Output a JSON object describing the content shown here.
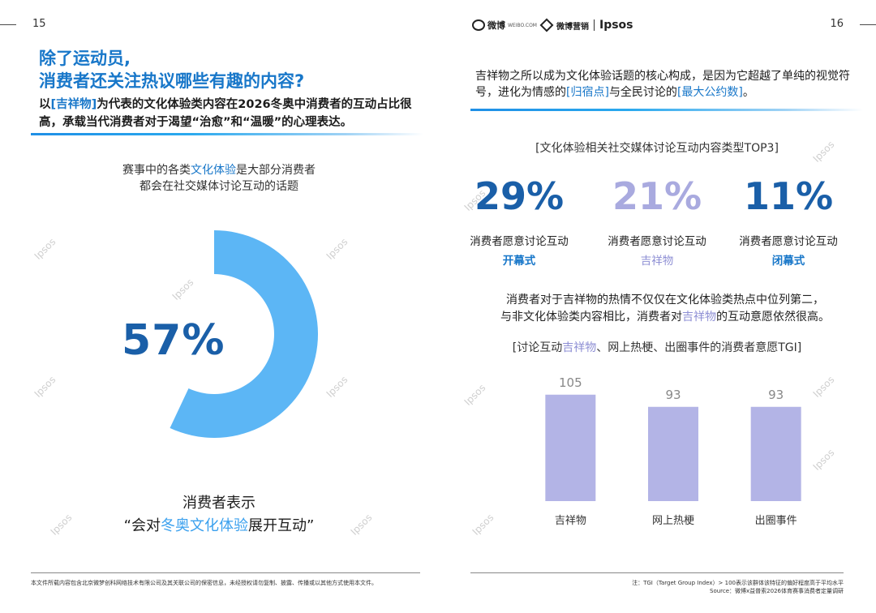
{
  "left_page": {
    "page_number": "15",
    "heading_line1": "除了运动员,",
    "heading_line2": "消费者还关注热议哪些有趣的内容?",
    "intro": {
      "before": "以",
      "highlight": "[吉祥物]",
      "after": "为代表的文化体验类内容在2026冬奥中消费者的互动占比很高，承载当代消费者对于渴望“治愈”和“温暖”的心理表达。"
    },
    "desc": {
      "before": "赛事中的各类",
      "highlight": "文化体验",
      "after": "是大部分消费者",
      "line2": "都会在社交媒体讨论互动的话题"
    },
    "donut": {
      "value": 57,
      "label": "57%",
      "color": "#5cb6f5"
    },
    "note_line1": "消费者表示",
    "note_line2": {
      "before": "“会对",
      "highlight": "冬奥文化体验",
      "after": "展开互动”"
    },
    "disclaimer": "本文件所载内容包含北京微梦创科网络技术有限公司及其关联公司的保密信息，未经授权请勿复制、披露、传播或以其他方式使用本文件。"
  },
  "right_page": {
    "page_number": "16",
    "logos": {
      "weibo": "微博",
      "weibo_sub": "WEIBO.COM",
      "insight": "微博营销",
      "ipsos": "Ipsos"
    },
    "intro": {
      "part1": "吉祥物之所以成为文化体验话题的核心构成，是因为它超越了单纯的视觉符号，进化为情感的",
      "hl1": "[归宿点]",
      "part2": "与全民讨论的",
      "hl2": "[最大公约数]",
      "part3": "。"
    },
    "top3_title": "[文化体验相关社交媒体讨论互动内容类型TOP3]",
    "stats": [
      {
        "value": "29%",
        "line1": "消费者愿意讨论互动",
        "line2": "开幕式",
        "color": "#1a5fa8",
        "sub_color": "#1877c9"
      },
      {
        "value": "21%",
        "line1": "消费者愿意讨论互动",
        "line2": "吉祥物",
        "color": "#a9aadf",
        "sub_color": "#8e8fd4"
      },
      {
        "value": "11%",
        "line1": "消费者愿意讨论互动",
        "line2": "闭幕式",
        "color": "#1a5fa8",
        "sub_color": "#1877c9"
      }
    ],
    "para2": {
      "line1": "消费者对于吉祥物的热情不仅仅在文化体验类热点中位列第二，",
      "line2_before": "与非文化体验类内容相比，消费者对",
      "line2_hl": "吉祥物",
      "line2_after": "的互动意愿依然很高。"
    },
    "bar_title": {
      "before": "[讨论互动",
      "hl": "吉祥物",
      "after": "、网上热梗、出圈事件的消费者意愿TGI]"
    },
    "source_line1": "注：TGI（Target Group Index）> 100表示该群体该特征的偏好程度高于平均水平",
    "source_line2": "Source：微博x益普索2026体育赛事消费者定量调研"
  },
  "watermark_text": "Ipsos",
  "chart_data": {
    "type": "bar",
    "categories": [
      "吉祥物",
      "网上热梗",
      "出圈事件"
    ],
    "values": [
      105,
      93,
      93
    ],
    "title": "[讨论互动吉祥物、网上热梗、出圈事件的消费者意愿TGI]",
    "xlabel": "",
    "ylabel": "",
    "ylim": [
      0,
      120
    ],
    "grid": false,
    "bar_color": "#b3b4e6",
    "label_color": "#888888"
  }
}
